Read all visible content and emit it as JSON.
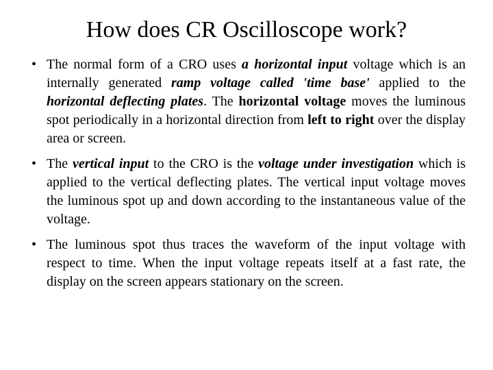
{
  "title": "How does CR Oscilloscope work?",
  "b1": {
    "s1": "The normal form of a CRO uses ",
    "s2": "a horizontal input",
    "s3": " voltage which is an internally generated ",
    "s4": "ramp voltage called 'time base'",
    "s5": "  applied to the ",
    "s6": "horizontal deflecting plates",
    "s7": ". The ",
    "s8": "horizontal voltage",
    "s9": " moves the luminous spot periodically in a horizontal direction from ",
    "s10": "left to right",
    "s11": " over the display area or screen."
  },
  "b2": {
    "s1": " The ",
    "s2": "vertical input",
    "s3": " to the CRO is the ",
    "s4": "voltage under investigation",
    "s5": " which is applied to the vertical deflecting plates. The vertical input voltage moves the luminous spot up and down  according  to the instantaneous value of the voltage."
  },
  "b3": {
    "s1": "The luminous spot thus traces the waveform of the input voltage with respect to time. When the input voltage repeats itself at a fast rate, the display on the screen appears stationary on the screen."
  }
}
